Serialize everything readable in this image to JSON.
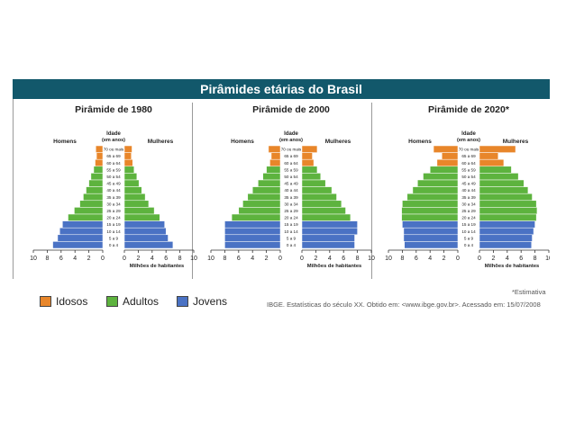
{
  "banner_title": "Pirâmides etárias do Brasil",
  "common": {
    "left_header": "Homens",
    "center_header_1": "Idade",
    "center_header_2": "(em anos)",
    "right_header": "Mulheres",
    "xlabel": "Milhões de habitantes",
    "age_labels": [
      "70 ou mais",
      "65 a 69",
      "60 a 64",
      "55 a 59",
      "50 a 54",
      "45 a 49",
      "40 a 44",
      "35 a 39",
      "30 a 34",
      "25 a 29",
      "20 a 24",
      "15 a 19",
      "10 a 14",
      "5 a 9",
      "0 a 4"
    ],
    "left_ticks": [
      "10",
      "8",
      "6",
      "4",
      "2",
      "0"
    ],
    "right_ticks": [
      "0",
      "2",
      "4",
      "6",
      "8",
      "10"
    ]
  },
  "colors": {
    "idosos": "#e8862a",
    "adultos": "#5db33e",
    "jovens": "#4a72c4",
    "banner": "#12586b"
  },
  "legend": {
    "idosos": "Idosos",
    "adultos": "Adultos",
    "jovens": "Jovens"
  },
  "source_text": "IBGE. Estatísticas do século XX. Obtido em: <www.ibge.gov.br>. Acessado em: 15/07/2008",
  "estimate_note": "*Estimativa",
  "chart_data": [
    {
      "type": "bar",
      "title": "Pirâmide de 1980",
      "categories": [
        "70 ou mais",
        "65 a 69",
        "60 a 64",
        "55 a 59",
        "50 a 54",
        "45 a 49",
        "40 a 44",
        "35 a 39",
        "30 a 34",
        "25 a 29",
        "20 a 24",
        "15 a 19",
        "10 a 14",
        "5 a 9",
        "0 a 4"
      ],
      "groups": [
        "idosos",
        "idosos",
        "idosos",
        "adultos",
        "adultos",
        "adultos",
        "adultos",
        "adultos",
        "adultos",
        "adultos",
        "adultos",
        "jovens",
        "jovens",
        "jovens",
        "jovens"
      ],
      "series": [
        {
          "name": "Homens",
          "values": [
            1.0,
            0.9,
            1.1,
            1.3,
            1.7,
            2.0,
            2.4,
            2.8,
            3.3,
            4.1,
            5.0,
            5.8,
            6.2,
            6.5,
            7.2
          ]
        },
        {
          "name": "Mulheres",
          "values": [
            1.1,
            1.0,
            1.2,
            1.4,
            1.8,
            2.1,
            2.5,
            3.0,
            3.5,
            4.3,
            5.1,
            5.8,
            6.0,
            6.3,
            7.0
          ]
        }
      ],
      "xlim": [
        0,
        10
      ]
    },
    {
      "type": "bar",
      "title": "Pirâmide de 2000",
      "categories": [
        "70 ou mais",
        "65 a 69",
        "60 a 64",
        "55 a 59",
        "50 a 54",
        "45 a 49",
        "40 a 44",
        "35 a 39",
        "30 a 34",
        "25 a 29",
        "20 a 24",
        "15 a 19",
        "10 a 14",
        "5 a 9",
        "0 a 4"
      ],
      "groups": [
        "idosos",
        "idosos",
        "idosos",
        "adultos",
        "adultos",
        "adultos",
        "adultos",
        "adultos",
        "adultos",
        "adultos",
        "adultos",
        "jovens",
        "jovens",
        "jovens",
        "jovens"
      ],
      "series": [
        {
          "name": "Homens",
          "values": [
            1.7,
            1.3,
            1.5,
            2.0,
            2.5,
            3.2,
            4.0,
            4.7,
            5.4,
            6.0,
            7.0,
            8.0,
            8.0,
            8.0,
            8.0
          ]
        },
        {
          "name": "Mulheres",
          "values": [
            2.2,
            1.5,
            1.7,
            2.2,
            2.7,
            3.4,
            4.3,
            5.0,
            5.7,
            6.3,
            7.0,
            8.0,
            8.0,
            7.6,
            7.6
          ]
        }
      ],
      "xlim": [
        0,
        10
      ]
    },
    {
      "type": "bar",
      "title": "Pirâmide de 2020*",
      "categories": [
        "70 ou mais",
        "65 a 69",
        "60 a 64",
        "55 a 59",
        "50 a 54",
        "45 a 49",
        "40 a 44",
        "35 a 39",
        "30 a 34",
        "25 a 29",
        "20 a 24",
        "15 a 19",
        "10 a 14",
        "5 a 9",
        "0 a 4"
      ],
      "groups": [
        "idosos",
        "idosos",
        "idosos",
        "adultos",
        "adultos",
        "adultos",
        "adultos",
        "adultos",
        "adultos",
        "adultos",
        "adultos",
        "jovens",
        "jovens",
        "jovens",
        "jovens"
      ],
      "series": [
        {
          "name": "Homens",
          "values": [
            3.5,
            2.3,
            3.0,
            4.0,
            5.0,
            5.8,
            6.5,
            7.3,
            8.0,
            8.1,
            8.1,
            8.0,
            7.8,
            7.8,
            7.7
          ]
        },
        {
          "name": "Mulheres",
          "values": [
            5.2,
            2.7,
            3.5,
            4.6,
            5.6,
            6.4,
            7.0,
            7.6,
            8.2,
            8.3,
            8.2,
            8.0,
            7.8,
            7.6,
            7.5
          ]
        }
      ],
      "xlim": [
        0,
        10
      ]
    }
  ]
}
